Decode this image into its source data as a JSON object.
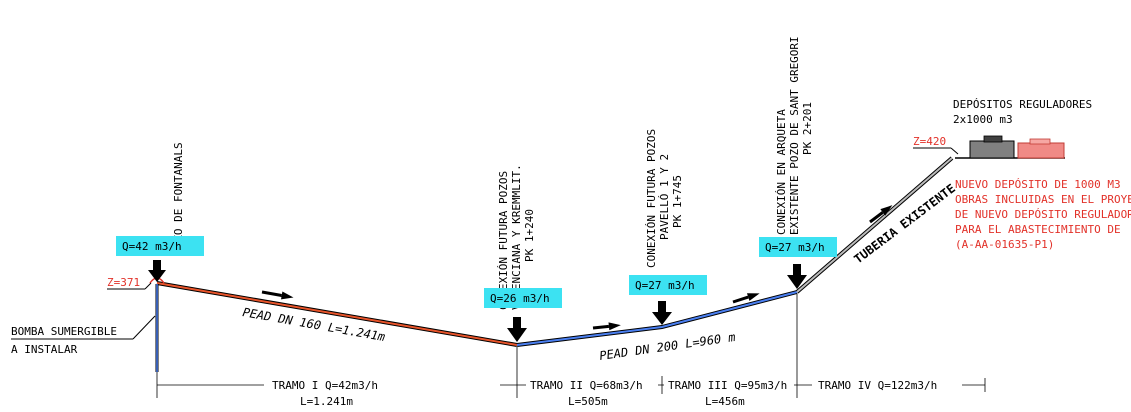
{
  "pozo_fontanals": {
    "label": "POZO DE FONTANALS",
    "flow": "Q=42 m3/h",
    "elev": "Z=371"
  },
  "bomba": {
    "line1": "BOMBA SUMERGIBLE",
    "line2": "A INSTALAR"
  },
  "conexion1": {
    "line1": "CONEXIÓN FUTURA POZOS",
    "line2": "VALENCIANA Y KREMMLIT.",
    "line3": "PK 1+240",
    "flow": "Q=26 m3/h"
  },
  "conexion2": {
    "line1": "CONEXIÓN FUTURA POZOS",
    "line2": "PAVELLÓ 1 Y 2",
    "line3": "PK 1+745",
    "flow": "Q=27 m3/h"
  },
  "conexion3": {
    "line1": "CONEXIÓN EN ARQUETA",
    "line2": "EXISTENTE POZO DE SANT GREGORI",
    "line3": "PK 2+201",
    "flow": "Q=27 m3/h"
  },
  "depositos": {
    "title": "DEPÓSITOS REGULADORES",
    "capacity": "2x1000 m3",
    "elev": "Z=420"
  },
  "nuevo_deposito": {
    "line1": "NUEVO DEPÓSITO DE 1000 M3",
    "line2": "OBRAS INCLUIDAS EN EL PROYECTO",
    "line3": "DE NUEVO DEPÓSITO REGULADOR",
    "line4": "PARA EL ABASTECIMIENTO DE",
    "line5": "(A-AA-01635-P1)"
  },
  "pipes": {
    "pead160": "PEAD DN 160 L=1.241m",
    "pead200": "PEAD DN 200 L=960 m",
    "existente": "TUBERIA EXISTENTE"
  },
  "tramos": {
    "t1": {
      "q": "TRAMO I Q=42m3/h",
      "l": "L=1.241m"
    },
    "t2": {
      "q": "TRAMO II Q=68m3/h",
      "l": "L=505m"
    },
    "t3": {
      "q": "TRAMO III Q=95m3/h",
      "l": "L=456m"
    },
    "t4": {
      "q": "TRAMO IV Q=122m3/h",
      "l": ""
    }
  }
}
